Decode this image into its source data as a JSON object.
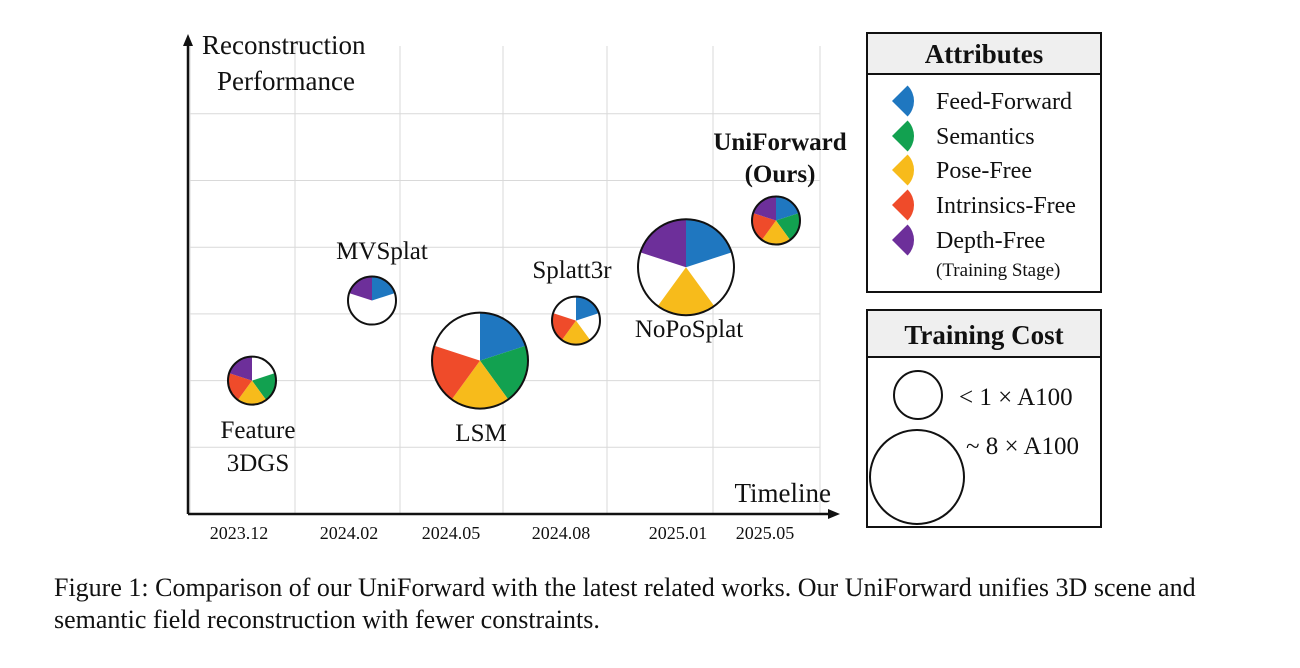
{
  "colors": {
    "feed_forward": "#1f77c0",
    "semantics": "#12a150",
    "pose_free": "#f7bb1b",
    "intrinsics_free": "#ef4b2a",
    "depth_free": "#6d2f9a"
  },
  "chart_data": {
    "type": "scatter",
    "ylabel": "Reconstruction Performance",
    "xlabel": "Timeline",
    "x_ticks": [
      "2023.12",
      "2024.02",
      "2024.05",
      "2024.08",
      "2025.01",
      "2025.05"
    ],
    "points": [
      {
        "name": "Feature 3DGS",
        "label_lines": [
          "Feature",
          "3DGS"
        ],
        "x": "2023.12",
        "performance": 2,
        "training_cost": "< 1 × A100",
        "attributes": [
          "semantics",
          "pose_free",
          "intrinsics_free",
          "depth_free"
        ],
        "bold": false
      },
      {
        "name": "MVSplat",
        "label_lines": [
          "MVSplat"
        ],
        "x": "2024.02",
        "performance": 3.2,
        "training_cost": "< 1 × A100",
        "attributes": [
          "feed_forward",
          "depth_free"
        ],
        "bold": false
      },
      {
        "name": "LSM",
        "label_lines": [
          "LSM"
        ],
        "x": "2024.05",
        "performance": 2.3,
        "training_cost": "~ 8 × A100",
        "attributes": [
          "feed_forward",
          "semantics",
          "pose_free",
          "intrinsics_free"
        ],
        "bold": false
      },
      {
        "name": "Splatt3r",
        "label_lines": [
          "Splatt3r"
        ],
        "x": "2024.08",
        "performance": 2.9,
        "training_cost": "< 1 × A100",
        "attributes": [
          "feed_forward",
          "pose_free",
          "intrinsics_free"
        ],
        "bold": false
      },
      {
        "name": "NoPoSplat",
        "label_lines": [
          "NoPoSplat"
        ],
        "x": "2025.01",
        "performance": 3.7,
        "training_cost": "~ 8 × A100",
        "attributes": [
          "feed_forward",
          "pose_free",
          "depth_free"
        ],
        "bold": false
      },
      {
        "name": "UniForward (Ours)",
        "label_lines": [
          "UniForward",
          "(Ours)"
        ],
        "x": "2025.05",
        "performance": 4.4,
        "training_cost": "< 1 × A100",
        "attributes": [
          "feed_forward",
          "semantics",
          "pose_free",
          "intrinsics_free",
          "depth_free"
        ],
        "bold": true
      }
    ],
    "grid": true,
    "legend": {
      "attributes_title": "Attributes",
      "attributes": [
        {
          "key": "feed_forward",
          "label": "Feed-Forward"
        },
        {
          "key": "semantics",
          "label": "Semantics"
        },
        {
          "key": "pose_free",
          "label": "Pose-Free"
        },
        {
          "key": "intrinsics_free",
          "label": "Intrinsics-Free"
        },
        {
          "key": "depth_free",
          "label": "Depth-Free",
          "sublabel": "(Training Stage)"
        }
      ],
      "cost_title": "Training Cost",
      "costs": [
        "< 1  ×  A100",
        "~ 8  × A100"
      ]
    }
  },
  "caption": "Figure 1: Comparison of our UniForward with the latest related works. Our UniForward unifies 3D scene and semantic field reconstruction with fewer constraints."
}
